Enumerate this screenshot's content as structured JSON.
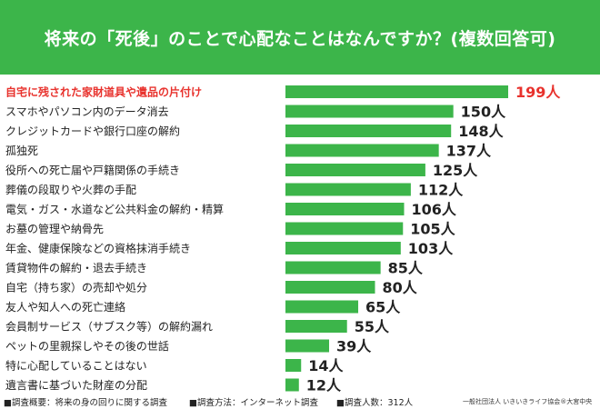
{
  "title": "将来の「死後」のことで心配なことはなんですか？(複数回答可)",
  "colors": {
    "header_bg": "#3cb54a",
    "bar": "#3cb54a",
    "highlight_text": "#e8322d",
    "text": "#222222"
  },
  "chart_data": {
    "type": "bar",
    "orientation": "horizontal",
    "unit": "人",
    "categories": [
      "自宅に残された家財道具や遺品の片付け",
      "スマホやパソコン内のデータ消去",
      "クレジットカードや銀行口座の解約",
      "孤独死",
      "役所への死亡届や戸籍関係の手続き",
      "葬儀の段取りや火葬の手配",
      "電気・ガス・水道など公共料金の解約・精算",
      "お墓の管理や納骨先",
      "年金、健康保険などの資格抹消手続き",
      "賃貸物件の解約・退去手続き",
      "自宅（持ち家）の売却や処分",
      "友人や知人への死亡連絡",
      "会員制サービス（サブスク等）の解約漏れ",
      "ペットの里親探しやその後の世話",
      "特に心配していることはない",
      "遺言書に基づいた財産の分配"
    ],
    "values": [
      199,
      150,
      148,
      137,
      125,
      112,
      106,
      105,
      103,
      85,
      80,
      65,
      55,
      39,
      14,
      12
    ],
    "value_labels": [
      "199人",
      "150人",
      "148人",
      "137人",
      "125人",
      "112人",
      "106人",
      "105人",
      "103人",
      "85人",
      "80人",
      "65人",
      "55人",
      "39人",
      "14人",
      "12人"
    ],
    "highlight_index": 0,
    "xlim": [
      0,
      199
    ]
  },
  "footer": {
    "summary": "■調査概要：将来の身の回りに関する調査",
    "method": "■調査方法：インターネット調査",
    "respondents": "■調査人数：312人",
    "source": "一般社団法人 いきいきライフ協会®大宮中央"
  }
}
